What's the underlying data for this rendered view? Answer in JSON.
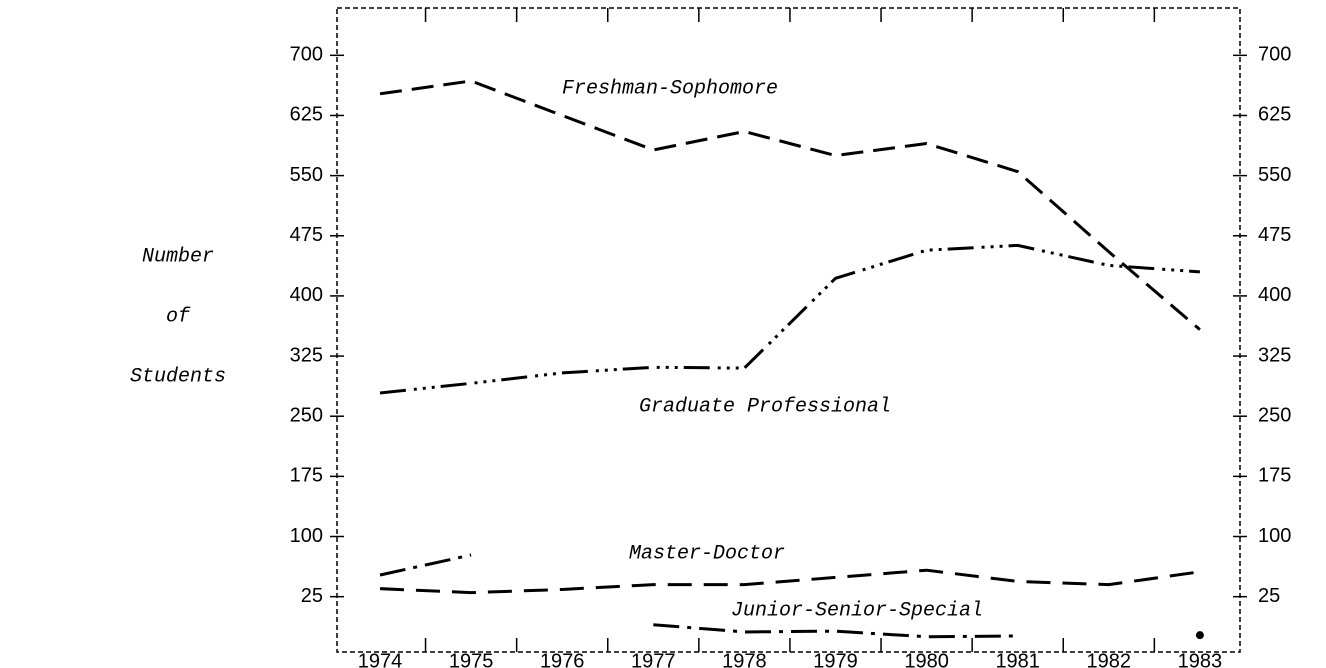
{
  "chart_data": {
    "type": "line",
    "ylabel": [
      "Number",
      "of",
      "Students"
    ],
    "categories": [
      "1974",
      "1975",
      "1976",
      "1977",
      "1978",
      "1979",
      "1980",
      "1981",
      "1982",
      "1983"
    ],
    "series": [
      {
        "name": "Freshman-Sophomore",
        "color": "#000000",
        "values": [
          652,
          668,
          625,
          582,
          605,
          575,
          590,
          555,
          455,
          358
        ]
      },
      {
        "name": "Graduate Professional",
        "color": "#000000",
        "values": [
          279,
          291,
          304,
          311,
          310,
          422,
          457,
          463,
          438,
          430
        ]
      },
      {
        "name": "Master-Doctor",
        "color": "#000000",
        "values": [
          35,
          30,
          34,
          40,
          40,
          49,
          58,
          44,
          40,
          56
        ]
      },
      {
        "name": "Junior-Senior-Special",
        "color": "#000000",
        "values": [
          52,
          77,
          null,
          -10,
          -19,
          -18,
          -25,
          -24,
          null,
          -23
        ]
      }
    ],
    "ylim": [
      -44,
      759
    ],
    "yticks": [
      25,
      100,
      175,
      250,
      325,
      400,
      475,
      550,
      625,
      700
    ],
    "y2lim": [
      -44,
      759
    ],
    "y2ticks": [
      25,
      100,
      175,
      250,
      325,
      400,
      475,
      550,
      625,
      700
    ],
    "grid": false
  }
}
